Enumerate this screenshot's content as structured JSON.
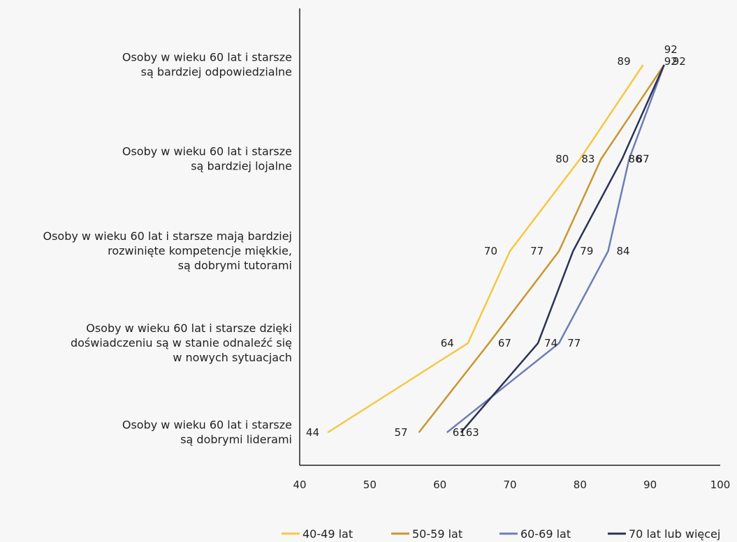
{
  "chart_data": {
    "type": "line",
    "orientation": "horizontal",
    "title": "",
    "xlabel": "",
    "ylabel": "",
    "xlim": [
      40,
      100
    ],
    "x_ticks": [
      "40",
      "50",
      "60",
      "70",
      "80",
      "90",
      "100"
    ],
    "grid": false,
    "legend_position": "bottom",
    "categories": [
      [
        "Osoby w wieku 60 lat i starsze",
        "są bardziej odpowiedzialne"
      ],
      [
        "Osoby w wieku 60 lat i starsze",
        "są bardziej lojalne"
      ],
      [
        "Osoby w wieku 60 lat i starsze mają bardziej",
        "rozwinięte kompetencje miękkie,",
        "są dobrymi tutorami"
      ],
      [
        "Osoby w wieku 60 lat i starsze dzięki",
        "doświadczeniu są w stanie odnaleźć się",
        "w nowych sytuacjach"
      ],
      [
        "Osoby w wieku 60 lat i starsze",
        "są dobrymi liderami"
      ]
    ],
    "series": [
      {
        "name": "40-49 lat",
        "color": "#f5c842",
        "values": [
          89,
          80,
          70,
          64,
          44
        ]
      },
      {
        "name": "50-59 lat",
        "color": "#c9962f",
        "values": [
          92,
          83,
          77,
          67,
          57
        ]
      },
      {
        "name": "60-69 lat",
        "color": "#6f7db5",
        "values": [
          92,
          87,
          84,
          77,
          61
        ]
      },
      {
        "name": "70 lat lub więcej",
        "color": "#2b3256",
        "values": [
          92,
          86,
          79,
          74,
          63
        ]
      }
    ]
  }
}
